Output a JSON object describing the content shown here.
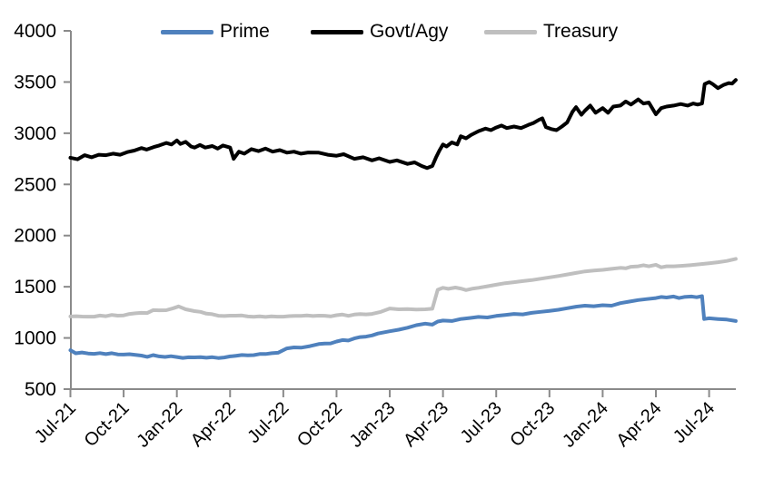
{
  "chart_data": {
    "type": "line",
    "title": "",
    "grid": "off",
    "axis_color": "#8a8a8a",
    "text_color": "#000000",
    "x_axis": {
      "unit": "month",
      "tick_labels": [
        "Jul-21",
        "Oct-21",
        "Jan-22",
        "Apr-22",
        "Jul-22",
        "Oct-22",
        "Jan-23",
        "Apr-23",
        "Jul-23",
        "Oct-23",
        "Jan-24",
        "Apr-24",
        "Jul-24"
      ],
      "tick_months": [
        0,
        3,
        6,
        9,
        12,
        15,
        18,
        21,
        24,
        27,
        30,
        33,
        36
      ],
      "data_start_month": 0,
      "data_end_month": 37.5
    },
    "y_axis": {
      "min": 500,
      "max": 4000,
      "ticks": [
        500,
        1000,
        1500,
        2000,
        2500,
        3000,
        3500,
        4000
      ]
    },
    "legend": {
      "position": "top",
      "entries": [
        "Prime",
        "Govt/Agy",
        "Treasury"
      ]
    },
    "series": [
      {
        "name": "Prime",
        "color": "#4F81BD",
        "points": [
          [
            0,
            880
          ],
          [
            0.3,
            850
          ],
          [
            1,
            848
          ],
          [
            2,
            842
          ],
          [
            3,
            838
          ],
          [
            4,
            828
          ],
          [
            5,
            820
          ],
          [
            6,
            814
          ],
          [
            7,
            810
          ],
          [
            8,
            812
          ],
          [
            9,
            820
          ],
          [
            10,
            830
          ],
          [
            11,
            843
          ],
          [
            11.7,
            855
          ],
          [
            12.2,
            898
          ],
          [
            13,
            905
          ],
          [
            13.5,
            920
          ],
          [
            14,
            940
          ],
          [
            15,
            965
          ],
          [
            16,
            995
          ],
          [
            17,
            1025
          ],
          [
            18,
            1065
          ],
          [
            18.5,
            1080
          ],
          [
            19,
            1100
          ],
          [
            19.5,
            1125
          ],
          [
            20,
            1140
          ],
          [
            20.4,
            1130
          ],
          [
            20.7,
            1160
          ],
          [
            21,
            1170
          ],
          [
            21.5,
            1165
          ],
          [
            22,
            1185
          ],
          [
            22.5,
            1195
          ],
          [
            23,
            1205
          ],
          [
            23.5,
            1200
          ],
          [
            24,
            1215
          ],
          [
            24.5,
            1225
          ],
          [
            25,
            1235
          ],
          [
            25.5,
            1230
          ],
          [
            26,
            1245
          ],
          [
            26.5,
            1255
          ],
          [
            27,
            1265
          ],
          [
            27.5,
            1275
          ],
          [
            28,
            1290
          ],
          [
            28.5,
            1305
          ],
          [
            29,
            1315
          ],
          [
            29.5,
            1310
          ],
          [
            30,
            1320
          ],
          [
            30.5,
            1315
          ],
          [
            31,
            1340
          ],
          [
            31.5,
            1355
          ],
          [
            32,
            1370
          ],
          [
            32.5,
            1380
          ],
          [
            33,
            1390
          ],
          [
            33.3,
            1400
          ],
          [
            33.6,
            1395
          ],
          [
            34,
            1405
          ],
          [
            34.3,
            1390
          ],
          [
            34.6,
            1400
          ],
          [
            35,
            1405
          ],
          [
            35.3,
            1398
          ],
          [
            35.6,
            1408
          ],
          [
            35.72,
            1185
          ],
          [
            36,
            1192
          ],
          [
            36.5,
            1185
          ],
          [
            37,
            1180
          ],
          [
            37.5,
            1165
          ]
        ]
      },
      {
        "name": "Govt/Agy",
        "color": "#000000",
        "points": [
          [
            0,
            2760
          ],
          [
            0.4,
            2745
          ],
          [
            0.8,
            2785
          ],
          [
            1.2,
            2765
          ],
          [
            1.6,
            2790
          ],
          [
            2,
            2785
          ],
          [
            2.4,
            2800
          ],
          [
            2.8,
            2790
          ],
          [
            3.2,
            2815
          ],
          [
            3.6,
            2830
          ],
          [
            4,
            2855
          ],
          [
            4.3,
            2840
          ],
          [
            4.7,
            2865
          ],
          [
            5,
            2880
          ],
          [
            5.4,
            2905
          ],
          [
            5.7,
            2890
          ],
          [
            6,
            2930
          ],
          [
            6.2,
            2895
          ],
          [
            6.5,
            2915
          ],
          [
            6.8,
            2870
          ],
          [
            7,
            2860
          ],
          [
            7.3,
            2885
          ],
          [
            7.6,
            2860
          ],
          [
            8,
            2875
          ],
          [
            8.3,
            2850
          ],
          [
            8.6,
            2880
          ],
          [
            9,
            2860
          ],
          [
            9.2,
            2750
          ],
          [
            9.5,
            2820
          ],
          [
            9.8,
            2800
          ],
          [
            10.2,
            2845
          ],
          [
            10.6,
            2825
          ],
          [
            11,
            2850
          ],
          [
            11.4,
            2820
          ],
          [
            11.8,
            2835
          ],
          [
            12.2,
            2810
          ],
          [
            12.6,
            2820
          ],
          [
            13,
            2800
          ],
          [
            13.4,
            2812
          ],
          [
            14,
            2810
          ],
          [
            14.5,
            2790
          ],
          [
            15,
            2780
          ],
          [
            15.4,
            2795
          ],
          [
            16,
            2750
          ],
          [
            16.5,
            2765
          ],
          [
            17,
            2735
          ],
          [
            17.4,
            2755
          ],
          [
            18,
            2720
          ],
          [
            18.4,
            2735
          ],
          [
            19,
            2700
          ],
          [
            19.4,
            2715
          ],
          [
            19.8,
            2680
          ],
          [
            20.1,
            2660
          ],
          [
            20.4,
            2680
          ],
          [
            20.6,
            2760
          ],
          [
            20.8,
            2830
          ],
          [
            21,
            2890
          ],
          [
            21.2,
            2870
          ],
          [
            21.5,
            2910
          ],
          [
            21.8,
            2890
          ],
          [
            22,
            2970
          ],
          [
            22.3,
            2950
          ],
          [
            22.6,
            2985
          ],
          [
            23,
            3020
          ],
          [
            23.4,
            3045
          ],
          [
            23.7,
            3030
          ],
          [
            24,
            3055
          ],
          [
            24.3,
            3075
          ],
          [
            24.6,
            3050
          ],
          [
            25,
            3065
          ],
          [
            25.4,
            3050
          ],
          [
            25.8,
            3080
          ],
          [
            26.1,
            3100
          ],
          [
            26.4,
            3130
          ],
          [
            26.6,
            3145
          ],
          [
            26.8,
            3060
          ],
          [
            27.1,
            3040
          ],
          [
            27.4,
            3030
          ],
          [
            27.7,
            3065
          ],
          [
            28,
            3105
          ],
          [
            28.3,
            3210
          ],
          [
            28.5,
            3255
          ],
          [
            28.8,
            3180
          ],
          [
            29,
            3220
          ],
          [
            29.3,
            3270
          ],
          [
            29.6,
            3200
          ],
          [
            30,
            3245
          ],
          [
            30.3,
            3200
          ],
          [
            30.6,
            3260
          ],
          [
            31,
            3270
          ],
          [
            31.3,
            3310
          ],
          [
            31.6,
            3280
          ],
          [
            32,
            3330
          ],
          [
            32.3,
            3290
          ],
          [
            32.6,
            3300
          ],
          [
            33,
            3185
          ],
          [
            33.3,
            3245
          ],
          [
            33.6,
            3260
          ],
          [
            34,
            3270
          ],
          [
            34.4,
            3285
          ],
          [
            34.8,
            3270
          ],
          [
            35.1,
            3290
          ],
          [
            35.35,
            3280
          ],
          [
            35.6,
            3290
          ],
          [
            35.75,
            3480
          ],
          [
            36,
            3500
          ],
          [
            36.2,
            3480
          ],
          [
            36.5,
            3440
          ],
          [
            36.8,
            3470
          ],
          [
            37.1,
            3490
          ],
          [
            37.3,
            3485
          ],
          [
            37.5,
            3520
          ]
        ]
      },
      {
        "name": "Treasury",
        "color": "#BFBFBF",
        "points": [
          [
            0,
            1210
          ],
          [
            1,
            1208
          ],
          [
            2,
            1212
          ],
          [
            3,
            1220
          ],
          [
            4,
            1245
          ],
          [
            5,
            1270
          ],
          [
            5.8,
            1290
          ],
          [
            6.1,
            1308
          ],
          [
            6.5,
            1280
          ],
          [
            7,
            1262
          ],
          [
            8,
            1232
          ],
          [
            9,
            1218
          ],
          [
            10,
            1210
          ],
          [
            11,
            1205
          ],
          [
            12,
            1208
          ],
          [
            13,
            1215
          ],
          [
            14,
            1218
          ],
          [
            15,
            1222
          ],
          [
            16,
            1228
          ],
          [
            17,
            1235
          ],
          [
            17.5,
            1255
          ],
          [
            18,
            1288
          ],
          [
            18.5,
            1280
          ],
          [
            19,
            1282
          ],
          [
            19.5,
            1278
          ],
          [
            20,
            1280
          ],
          [
            20.4,
            1285
          ],
          [
            20.7,
            1470
          ],
          [
            21,
            1490
          ],
          [
            21.3,
            1480
          ],
          [
            21.7,
            1492
          ],
          [
            22,
            1483
          ],
          [
            22.3,
            1468
          ],
          [
            22.7,
            1483
          ],
          [
            23,
            1490
          ],
          [
            23.5,
            1505
          ],
          [
            24,
            1520
          ],
          [
            24.5,
            1535
          ],
          [
            25,
            1545
          ],
          [
            25.5,
            1555
          ],
          [
            26,
            1565
          ],
          [
            26.5,
            1578
          ],
          [
            27,
            1592
          ],
          [
            27.5,
            1605
          ],
          [
            28,
            1620
          ],
          [
            28.5,
            1635
          ],
          [
            29,
            1650
          ],
          [
            29.5,
            1658
          ],
          [
            30,
            1665
          ],
          [
            30.5,
            1675
          ],
          [
            31,
            1685
          ],
          [
            31.3,
            1680
          ],
          [
            31.6,
            1695
          ],
          [
            32,
            1700
          ],
          [
            32.3,
            1710
          ],
          [
            32.6,
            1700
          ],
          [
            33,
            1715
          ],
          [
            33.3,
            1690
          ],
          [
            33.6,
            1700
          ],
          [
            34,
            1700
          ],
          [
            34.5,
            1705
          ],
          [
            35,
            1712
          ],
          [
            35.5,
            1720
          ],
          [
            36,
            1730
          ],
          [
            36.5,
            1740
          ],
          [
            37,
            1752
          ],
          [
            37.5,
            1772
          ]
        ]
      }
    ]
  }
}
